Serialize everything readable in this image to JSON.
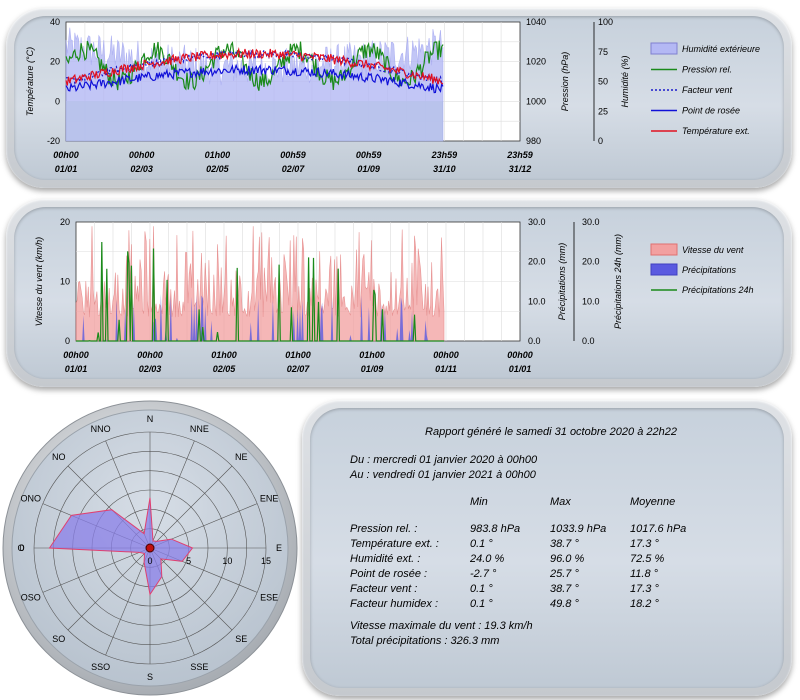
{
  "colors": {
    "humidity_fill": "#b4b8f4",
    "pressure": "#1a8a1a",
    "wind_chill": "#1a1acc",
    "dew_point": "#1010d8",
    "temperature": "#e01020",
    "wind_speed": "#f2a0a0",
    "precip": "#5a5ae0",
    "precip24": "#1a8a1a",
    "temp_area": "#c6eec6"
  },
  "chart_data": [
    {
      "type": "line",
      "title": "",
      "left_axis": {
        "label": "Température (°C)",
        "ticks": [
          "40",
          "20",
          "0",
          "-20"
        ],
        "range": [
          -20,
          40
        ]
      },
      "right_axis1": {
        "label": "Pression (hPa)",
        "ticks": [
          "1040",
          "1020",
          "1000",
          "980"
        ],
        "range": [
          980,
          1040
        ]
      },
      "right_axis2": {
        "label": "Humidité (%)",
        "ticks": [
          "100",
          "75",
          "50",
          "25",
          "0"
        ],
        "range": [
          0,
          100
        ]
      },
      "x_ticks": [
        [
          "00h00",
          "01/01"
        ],
        [
          "00h00",
          "02/03"
        ],
        [
          "01h00",
          "02/05"
        ],
        [
          "00h59",
          "02/07"
        ],
        [
          "00h59",
          "01/09"
        ],
        [
          "23h59",
          "31/10"
        ],
        [
          "23h59",
          "31/12"
        ]
      ],
      "legend": [
        "Humidité extérieure",
        "Pression rel.",
        "Facteur vent",
        "Point de rosée",
        "Température ext."
      ],
      "grid": true,
      "series": [
        {
          "name": "Humidité extérieure",
          "min": 24,
          "max": 96,
          "mean": 72.5
        },
        {
          "name": "Pression rel.",
          "min": 983.8,
          "max": 1033.9,
          "mean": 1017.6
        },
        {
          "name": "Facteur vent",
          "min": 0.1,
          "max": 38.7,
          "mean": 17.3
        },
        {
          "name": "Point de rosée",
          "min": -2.7,
          "max": 25.7,
          "mean": 11.8
        },
        {
          "name": "Température ext.",
          "min": 0.1,
          "max": 38.7,
          "mean": 17.3
        }
      ]
    },
    {
      "type": "bar",
      "title": "",
      "left_axis": {
        "label": "Vitesse du vent (km/h)",
        "ticks": [
          "20",
          "10",
          "0"
        ],
        "range": [
          0,
          20
        ]
      },
      "right_axis1": {
        "label": "Précipitations (mm)",
        "ticks": [
          "30.0",
          "20.0",
          "10.0",
          "0.0"
        ],
        "range": [
          0,
          30
        ]
      },
      "right_axis2": {
        "label": "Précipitations 24h (mm)",
        "ticks": [
          "30.0",
          "20.0",
          "10.0",
          "0.0"
        ],
        "range": [
          0,
          30
        ]
      },
      "x_ticks": [
        [
          "00h00",
          "01/01"
        ],
        [
          "00h00",
          "02/03"
        ],
        [
          "01h00",
          "02/05"
        ],
        [
          "01h00",
          "02/07"
        ],
        [
          "01h00",
          "01/09"
        ],
        [
          "00h00",
          "01/11"
        ],
        [
          "00h00",
          "01/01"
        ]
      ],
      "legend": [
        "Vitesse du vent",
        "Précipitations",
        "Précipitations 24h"
      ],
      "grid": true
    },
    {
      "type": "radar",
      "directions": [
        "N",
        "NNE",
        "NE",
        "ENE",
        "E",
        "ESE",
        "SE",
        "SSE",
        "S",
        "SSO",
        "SO",
        "OSO",
        "O",
        "ONO",
        "NO",
        "NNO"
      ],
      "rings": [
        "5",
        "10",
        "15"
      ],
      "left_label": "0",
      "center_label": "0",
      "range": [
        0,
        15
      ],
      "values": [
        6.5,
        1.0,
        1.2,
        3.0,
        5.5,
        4.5,
        2.0,
        4.0,
        6.0,
        2.0,
        1.0,
        1.5,
        13.0,
        11.0,
        7.0,
        2.0
      ]
    }
  ],
  "report": {
    "title": "Rapport généré le samedi 31 octobre 2020 à 22h22",
    "from": "Du : mercredi 01 janvier 2020 à 00h00",
    "to": "Au : vendredi 01 janvier 2021 à 00h00",
    "headers": [
      "Min",
      "Max",
      "Moyenne"
    ],
    "rows": [
      {
        "label": "Pression rel. :",
        "min": "983.8 hPa",
        "max": "1033.9 hPa",
        "mean": "1017.6 hPa"
      },
      {
        "label": "Température ext. :",
        "min": "0.1 °",
        "max": "38.7 °",
        "mean": "17.3 °"
      },
      {
        "label": "Humidité ext. :",
        "min": "24.0 %",
        "max": "96.0 %",
        "mean": "72.5 %"
      },
      {
        "label": "Point de rosée :",
        "min": "-2.7 °",
        "max": "25.7 °",
        "mean": "11.8 °"
      },
      {
        "label": "Facteur vent :",
        "min": "0.1 °",
        "max": "38.7 °",
        "mean": "17.3 °"
      },
      {
        "label": "Facteur humidex :",
        "min": "0.1 °",
        "max": "49.8 °",
        "mean": "18.2 °"
      }
    ],
    "max_wind": "Vitesse maximale du vent : 19.3 km/h",
    "total_rain": "Total précipitations : 326.3 mm"
  }
}
